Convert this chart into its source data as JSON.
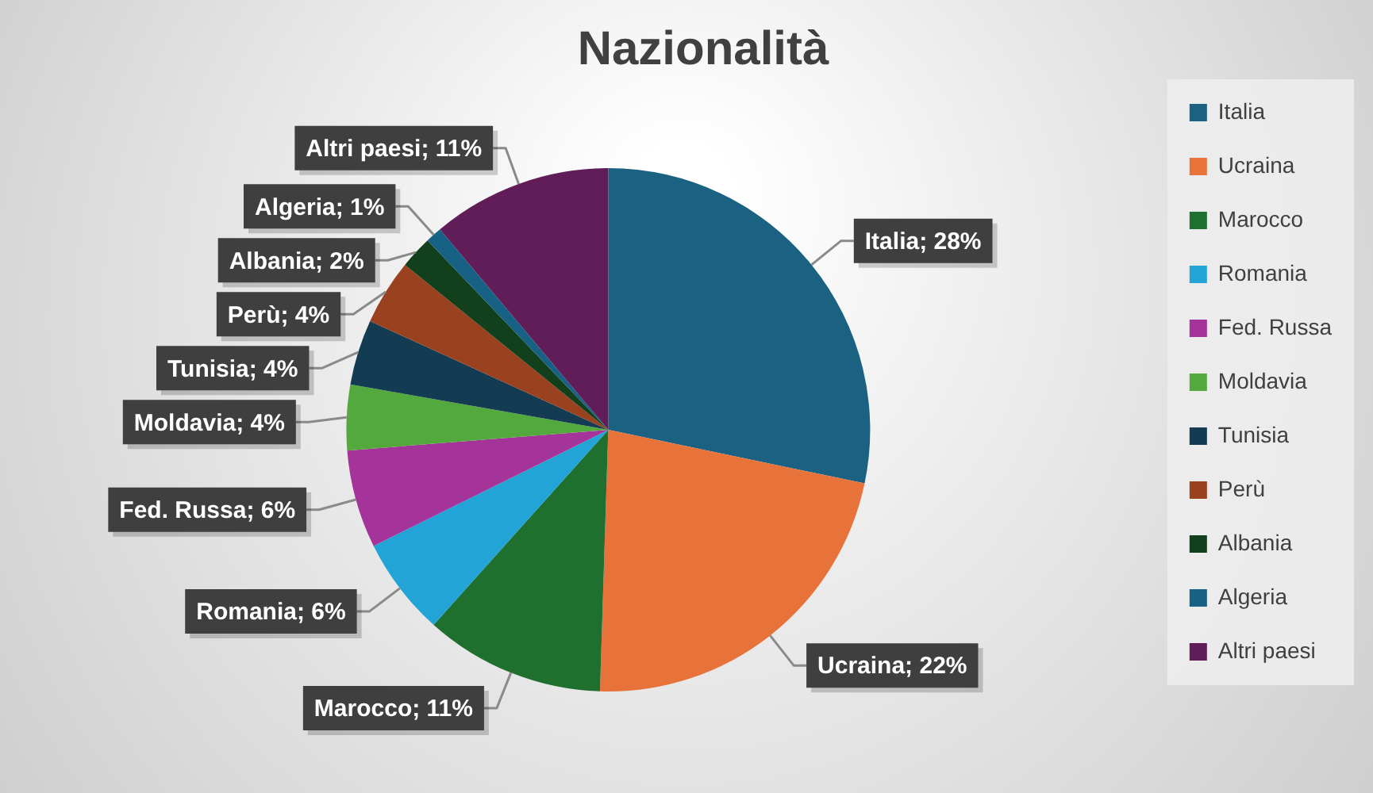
{
  "chart_data": {
    "type": "pie",
    "title": "Nazionalità",
    "categories": [
      "Italia",
      "Ucraina",
      "Marocco",
      "Romania",
      "Fed. Russa",
      "Moldavia",
      "Tunisia",
      "Perù",
      "Albania",
      "Algeria",
      "Altri paesi"
    ],
    "values": [
      28,
      22,
      11,
      6,
      6,
      4,
      4,
      4,
      2,
      1,
      11
    ],
    "colors": [
      "#1b6282",
      "#e8733a",
      "#1f6f2e",
      "#22a4d6",
      "#a4349a",
      "#53a93d",
      "#133c53",
      "#9a4120",
      "#123f1c",
      "#166184",
      "#601d57"
    ],
    "value_labels": [
      "Italia; 28%",
      "Ucraina; 22%",
      "Marocco; 11%",
      "Romania; 6%",
      "Fed. Russa; 6%",
      "Moldavia; 4%",
      "Tunisia; 4%",
      "Perù; 4%",
      "Albania; 2%",
      "Algeria; 1%",
      "Altri paesi; 11%"
    ],
    "legend": "right"
  }
}
